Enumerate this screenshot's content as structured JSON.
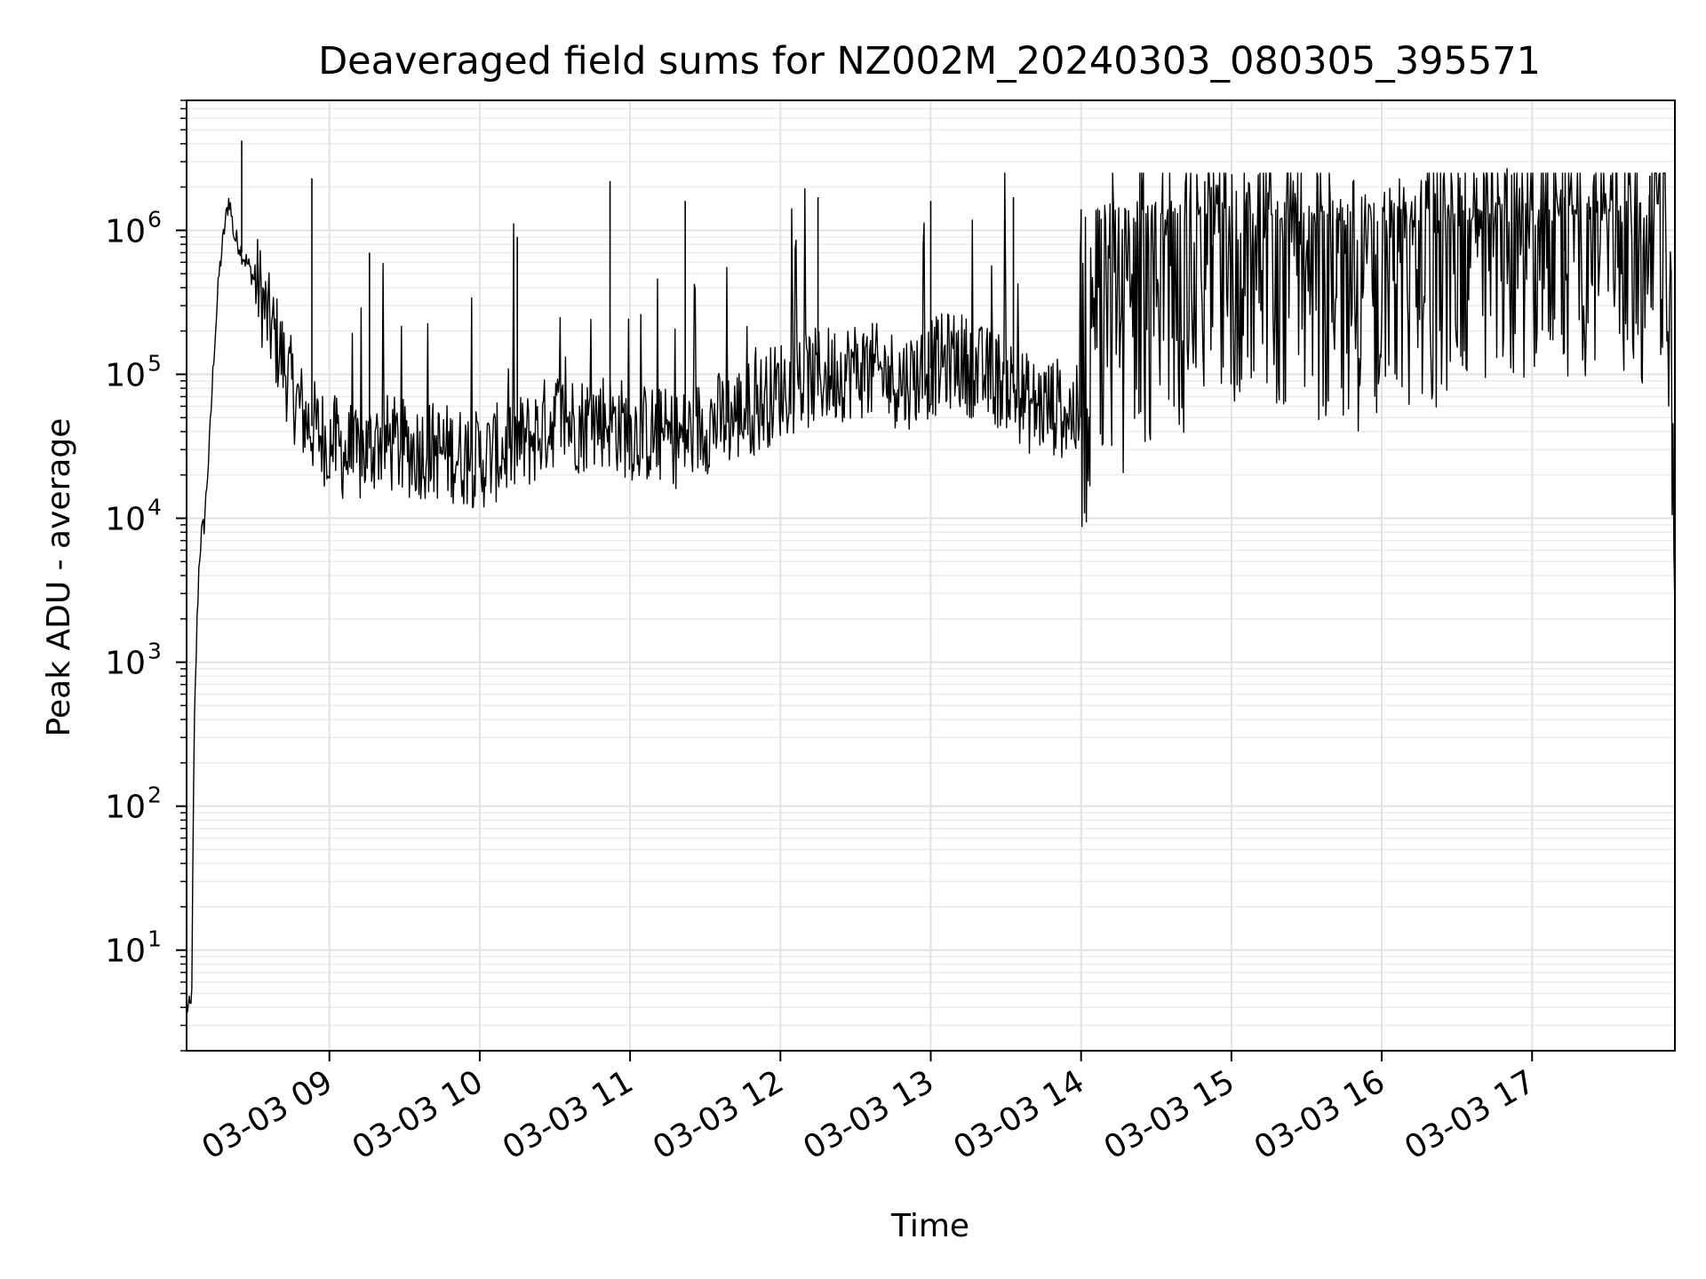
{
  "chart_data": {
    "type": "line",
    "title": "Deaveraged field sums for NZ002M_20240303_080305_395571",
    "xlabel": "Time",
    "ylabel": "Peak ADU - average",
    "yscale": "log",
    "ylim": [
      2,
      8000000
    ],
    "xlim": [
      "03-03 08:03",
      "03-03 17:57"
    ],
    "grid": true,
    "legend": "none",
    "line_color": "#000000",
    "x_ticks": [
      {
        "time": "09:00",
        "label": "03-03 09"
      },
      {
        "time": "10:00",
        "label": "03-03 10"
      },
      {
        "time": "11:00",
        "label": "03-03 11"
      },
      {
        "time": "12:00",
        "label": "03-03 12"
      },
      {
        "time": "13:00",
        "label": "03-03 13"
      },
      {
        "time": "14:00",
        "label": "03-03 14"
      },
      {
        "time": "15:00",
        "label": "03-03 15"
      },
      {
        "time": "16:00",
        "label": "03-03 16"
      },
      {
        "time": "17:00",
        "label": "03-03 17"
      }
    ],
    "y_ticks": [
      {
        "value": 10,
        "base": "10",
        "exp": "1"
      },
      {
        "value": 100,
        "base": "10",
        "exp": "2"
      },
      {
        "value": 1000,
        "base": "10",
        "exp": "3"
      },
      {
        "value": 10000,
        "base": "10",
        "exp": "4"
      },
      {
        "value": 100000,
        "base": "10",
        "exp": "5"
      },
      {
        "value": 1000000,
        "base": "10",
        "exp": "6"
      }
    ],
    "series": [
      {
        "x": [
          "08:03",
          "08:04",
          "08:05",
          "08:06",
          "08:07",
          "08:08",
          "08:09",
          "08:10",
          "08:12",
          "08:14",
          "08:16",
          "08:18",
          "08:20",
          "08:22",
          "08:24",
          "08:25",
          "08:26",
          "08:28",
          "08:30",
          "08:32",
          "08:35",
          "08:40",
          "08:45",
          "08:50",
          "08:55",
          "09:00",
          "09:10",
          "09:20",
          "09:30",
          "09:40",
          "09:50",
          "10:00",
          "10:10",
          "10:20",
          "10:30",
          "10:40",
          "10:50",
          "11:00",
          "11:10",
          "11:20",
          "11:30",
          "11:40",
          "11:50",
          "12:00",
          "12:10",
          "12:20",
          "12:30",
          "12:40",
          "12:50",
          "13:00",
          "13:10",
          "13:20",
          "13:30",
          "13:40",
          "13:50",
          "14:00",
          "14:10",
          "14:20",
          "14:30",
          "14:40",
          "14:50",
          "15:00",
          "15:10",
          "15:20",
          "15:30",
          "15:40",
          "15:50",
          "16:00",
          "16:10",
          "16:20",
          "16:30",
          "16:40",
          "16:50",
          "17:00",
          "17:10",
          "17:20",
          "17:30",
          "17:40",
          "17:45",
          "17:50",
          "17:53",
          "17:55",
          "17:57"
        ],
        "y": [
          4,
          4,
          4,
          300,
          1500,
          5000,
          8000,
          9000,
          30000,
          150000,
          500000,
          1000000,
          1700000,
          900000,
          800000,
          700000,
          650000,
          550000,
          450000,
          400000,
          250000,
          150000,
          80000,
          50000,
          40000,
          35000,
          25000,
          35000,
          30000,
          30000,
          28000,
          25000,
          30000,
          35000,
          50000,
          45000,
          50000,
          40000,
          38000,
          35000,
          45000,
          50000,
          60000,
          80000,
          90000,
          100000,
          110000,
          100000,
          90000,
          110000,
          130000,
          100000,
          90000,
          60000,
          60000,
          50000,
          200000,
          150000,
          250000,
          300000,
          400000,
          450000,
          500000,
          450000,
          400000,
          350000,
          300000,
          350000,
          400000,
          450000,
          550000,
          600000,
          650000,
          700000,
          700000,
          750000,
          800000,
          700000,
          600000,
          1300000,
          800000,
          200000,
          8000
        ]
      },
      {
        "name": "",
        "x": [
          "08:25",
          "08:53",
          "09:16",
          "10:15",
          "10:52",
          "11:22",
          "12:15",
          "13:00",
          "13:33",
          "14:00",
          "14:52",
          "15:42",
          "16:32",
          "16:50",
          "17:13",
          "17:47"
        ],
        "y": [
          4200000,
          2300000,
          700000,
          900000,
          2200000,
          1600000,
          1700000,
          1600000,
          1700000,
          1400000,
          2000000,
          1200000,
          1700000,
          2700000,
          1700000,
          2400000
        ],
        "style": "spikes"
      }
    ]
  }
}
